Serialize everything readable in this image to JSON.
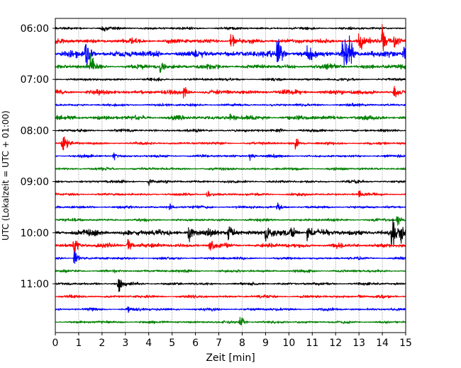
{
  "chart_data": {
    "type": "line",
    "title": "",
    "xlabel": "Zeit  [min]",
    "ylabel": "UTC (Lokalzeit = UTC + 01:00)",
    "xlim": [
      0,
      15
    ],
    "x_ticks": [
      "0",
      "1",
      "2",
      "3",
      "4",
      "5",
      "6",
      "7",
      "8",
      "9",
      "10",
      "11",
      "12",
      "13",
      "14",
      "15"
    ],
    "y_tick_labels": [
      "06:00",
      "07:00",
      "08:00",
      "09:00",
      "10:00",
      "11:00"
    ],
    "grid": "vertical dotted at each minute",
    "legend": "none",
    "row_interval_minutes": 15,
    "row_colors": [
      "#000000",
      "#ff0000",
      "#0000ff",
      "#008000"
    ],
    "series": [
      {
        "start": "06:00",
        "color": "#000000",
        "activity": "low",
        "events": [
          {
            "x": 2.0,
            "amp": 0.25
          }
        ]
      },
      {
        "start": "06:15",
        "color": "#ff0000",
        "activity": "moderate",
        "events": [
          {
            "x": 7.5,
            "amp": 0.8
          },
          {
            "x": 13.0,
            "amp": 1.0
          },
          {
            "x": 14.0,
            "amp": 1.3
          },
          {
            "x": 14.5,
            "amp": 0.6
          }
        ]
      },
      {
        "start": "06:30",
        "color": "#0000ff",
        "activity": "high",
        "events": [
          {
            "x": 1.3,
            "amp": 1.8
          },
          {
            "x": 9.5,
            "amp": 2.0
          },
          {
            "x": 10.8,
            "amp": 0.8
          },
          {
            "x": 12.3,
            "amp": 2.0
          },
          {
            "x": 12.6,
            "amp": 1.2
          },
          {
            "x": 14.9,
            "amp": 1.0
          }
        ]
      },
      {
        "start": "06:45",
        "color": "#008000",
        "activity": "moderate",
        "events": [
          {
            "x": 1.5,
            "amp": 1.0
          },
          {
            "x": 4.5,
            "amp": 0.4
          }
        ]
      },
      {
        "start": "07:00",
        "color": "#000000",
        "activity": "low",
        "events": []
      },
      {
        "start": "07:15",
        "color": "#ff0000",
        "activity": "moderate",
        "events": [
          {
            "x": 5.5,
            "amp": 0.6
          },
          {
            "x": 14.5,
            "amp": 0.5
          }
        ]
      },
      {
        "start": "07:30",
        "color": "#0000ff",
        "activity": "low",
        "events": []
      },
      {
        "start": "07:45",
        "color": "#008000",
        "activity": "moderate",
        "events": [
          {
            "x": 7.5,
            "amp": 0.4
          }
        ]
      },
      {
        "start": "08:00",
        "color": "#000000",
        "activity": "low",
        "events": [
          {
            "x": 9.5,
            "amp": 0.3
          }
        ]
      },
      {
        "start": "08:15",
        "color": "#ff0000",
        "activity": "low",
        "events": [
          {
            "x": 0.3,
            "amp": 1.0
          },
          {
            "x": 10.3,
            "amp": 0.6
          }
        ]
      },
      {
        "start": "08:30",
        "color": "#0000ff",
        "activity": "low",
        "events": [
          {
            "x": 2.5,
            "amp": 0.3
          },
          {
            "x": 8.3,
            "amp": 0.4
          }
        ]
      },
      {
        "start": "08:45",
        "color": "#008000",
        "activity": "low",
        "events": []
      },
      {
        "start": "09:00",
        "color": "#000000",
        "activity": "low",
        "events": [
          {
            "x": 4.0,
            "amp": 0.3
          }
        ]
      },
      {
        "start": "09:15",
        "color": "#ff0000",
        "activity": "low",
        "events": [
          {
            "x": 6.5,
            "amp": 0.3
          },
          {
            "x": 13.0,
            "amp": 0.3
          }
        ]
      },
      {
        "start": "09:30",
        "color": "#0000ff",
        "activity": "low",
        "events": [
          {
            "x": 4.9,
            "amp": 0.3
          },
          {
            "x": 9.5,
            "amp": 0.4
          }
        ]
      },
      {
        "start": "09:45",
        "color": "#008000",
        "activity": "low",
        "events": [
          {
            "x": 14.6,
            "amp": 0.7
          }
        ]
      },
      {
        "start": "10:00",
        "color": "#000000",
        "activity": "high",
        "events": [
          {
            "x": 5.7,
            "amp": 0.8
          },
          {
            "x": 7.4,
            "amp": 0.6
          },
          {
            "x": 9.0,
            "amp": 0.9
          },
          {
            "x": 10.1,
            "amp": 0.8
          },
          {
            "x": 10.8,
            "amp": 0.8
          },
          {
            "x": 14.4,
            "amp": 1.0
          },
          {
            "x": 14.8,
            "amp": 0.8
          }
        ]
      },
      {
        "start": "10:15",
        "color": "#ff0000",
        "activity": "moderate",
        "events": [
          {
            "x": 0.8,
            "amp": 0.8
          },
          {
            "x": 3.1,
            "amp": 0.6
          },
          {
            "x": 6.6,
            "amp": 0.5
          }
        ]
      },
      {
        "start": "10:30",
        "color": "#0000ff",
        "activity": "low",
        "events": [
          {
            "x": 0.8,
            "amp": 0.8
          }
        ]
      },
      {
        "start": "10:45",
        "color": "#008000",
        "activity": "low",
        "events": []
      },
      {
        "start": "11:00",
        "color": "#000000",
        "activity": "low",
        "events": [
          {
            "x": 2.7,
            "amp": 0.8
          }
        ]
      },
      {
        "start": "11:15",
        "color": "#ff0000",
        "activity": "low",
        "events": [
          {
            "x": 13.0,
            "amp": 0.2
          }
        ]
      },
      {
        "start": "11:30",
        "color": "#0000ff",
        "activity": "low",
        "events": [
          {
            "x": 3.1,
            "amp": 0.2
          }
        ]
      },
      {
        "start": "11:45",
        "color": "#008000",
        "activity": "low",
        "events": [
          {
            "x": 7.9,
            "amp": 0.7
          }
        ]
      }
    ]
  }
}
